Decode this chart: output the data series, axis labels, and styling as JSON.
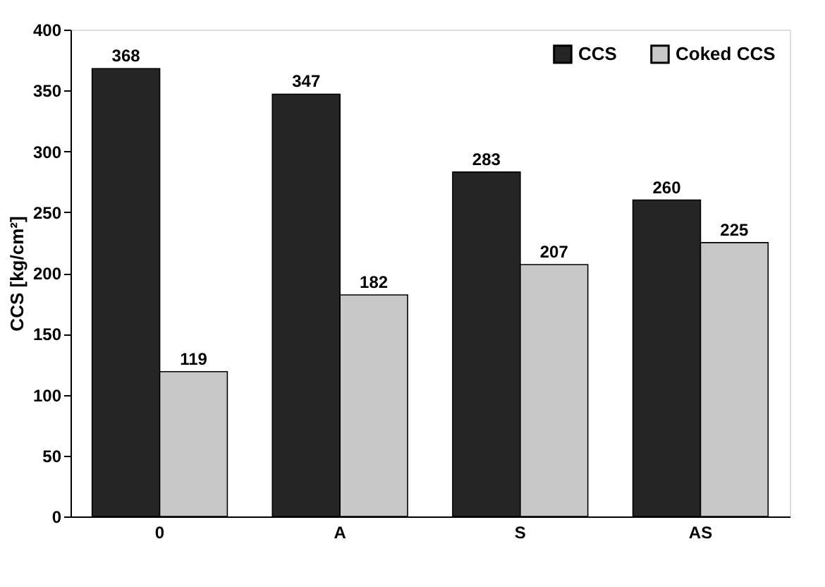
{
  "chart_data": {
    "type": "bar",
    "ylabel": "CCS [kg/cm²]",
    "categories": [
      "0",
      "A",
      "S",
      "AS"
    ],
    "series": [
      {
        "name": "CCS",
        "color": "#262626",
        "values": [
          368,
          347,
          283,
          260
        ]
      },
      {
        "name": "Coked CCS",
        "color": "#c8c8c8",
        "values": [
          119,
          182,
          207,
          225
        ]
      }
    ],
    "ylim": [
      0,
      400
    ],
    "yticks": [
      0,
      50,
      100,
      150,
      200,
      250,
      300,
      350,
      400
    ],
    "grid": false,
    "legend": "top right",
    "data_labels": true
  }
}
